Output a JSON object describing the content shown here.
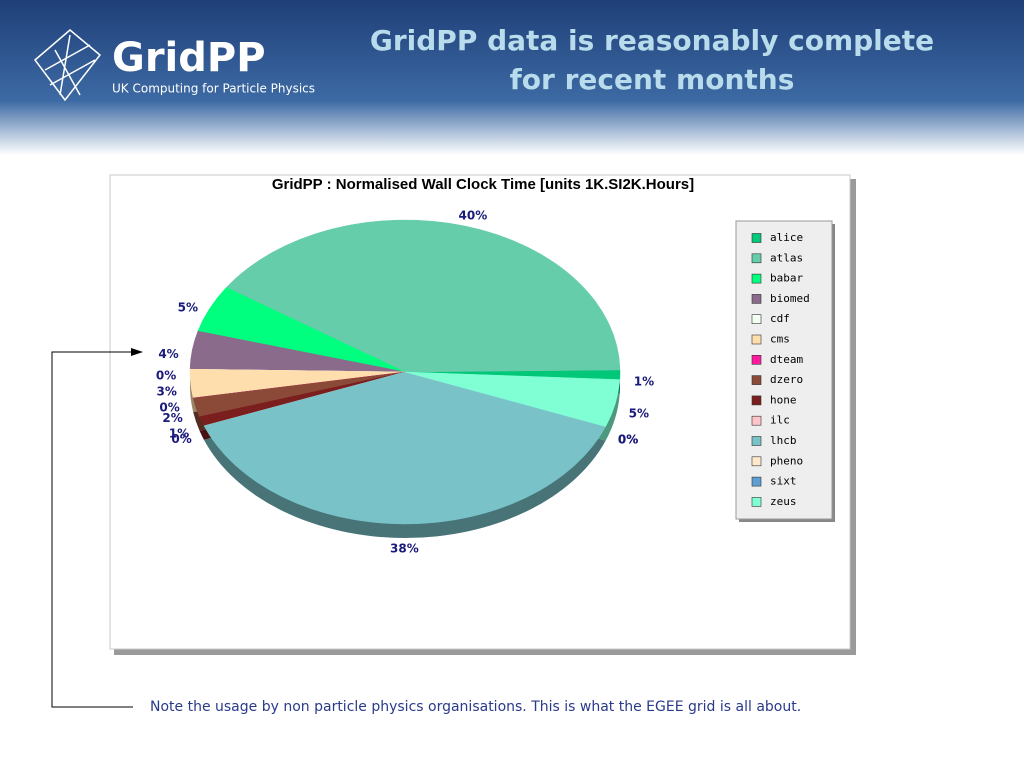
{
  "header": {
    "logo": "GridPP",
    "logo_subtitle": "UK Computing for Particle Physics",
    "title_lines": [
      "GridPP data is reasonably complete",
      "for recent months"
    ]
  },
  "chart_data": {
    "type": "pie",
    "title": "GridPP : Normalised Wall Clock Time [units 1K.SI2K.Hours]",
    "categories": [
      "alice",
      "atlas",
      "babar",
      "biomed",
      "cdf",
      "cms",
      "dteam",
      "dzero",
      "hone",
      "ilc",
      "lhcb",
      "pheno",
      "sixt",
      "zeus"
    ],
    "values": [
      1,
      40,
      5,
      4,
      0,
      3,
      0,
      2,
      1,
      0,
      38,
      0,
      0,
      5
    ],
    "value_labels": [
      "1%",
      "40%",
      "5%",
      "4%",
      "0%",
      "3%",
      "0%",
      "2%",
      "1%",
      "0%",
      "38%",
      "0%",
      "0%",
      "5%"
    ],
    "colors": [
      "#00c878",
      "#66cdaa",
      "#00ff7f",
      "#8b6b8b",
      "#f4fff4",
      "#ffdeae",
      "#ff1aa0",
      "#8b4a38",
      "#7a1e1e",
      "#ffc4c8",
      "#78c2c8",
      "#ffe8cc",
      "#5e9ed2",
      "#80ffd4"
    ],
    "legend": "right"
  },
  "note": "Note the usage by non particle physics organisations. This is what the EGEE grid is all about."
}
